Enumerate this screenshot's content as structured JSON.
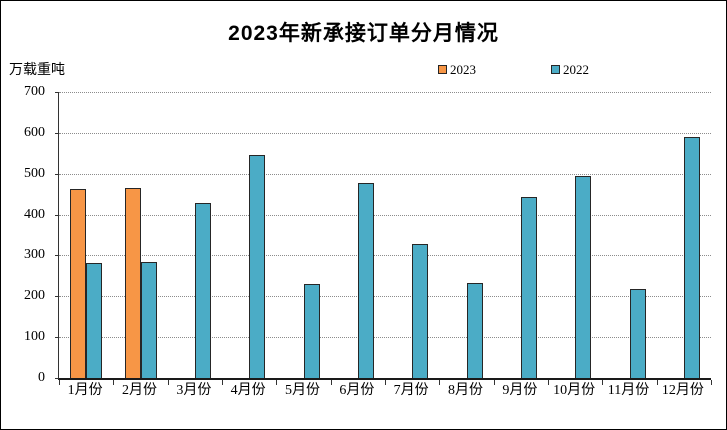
{
  "chart_data": {
    "type": "bar",
    "title": "2023年新承接订单分月情况",
    "ylabel": "万载重吨",
    "xlabel": "",
    "categories": [
      "1月份",
      "2月份",
      "3月份",
      "4月份",
      "5月份",
      "6月份",
      "7月份",
      "8月份",
      "9月份",
      "10月份",
      "11月份",
      "12月份"
    ],
    "series": [
      {
        "name": "2023",
        "color": "#F79646",
        "values": [
          462,
          466,
          null,
          null,
          null,
          null,
          null,
          null,
          null,
          null,
          null,
          null
        ]
      },
      {
        "name": "2022",
        "color": "#4BACC6",
        "values": [
          281,
          283,
          428,
          547,
          231,
          477,
          327,
          233,
          442,
          494,
          218,
          590
        ]
      }
    ],
    "ylim": [
      0,
      700
    ],
    "yticks": [
      0,
      100,
      200,
      300,
      400,
      500,
      600,
      700
    ],
    "grid": "horizontal-dotted",
    "legend_position": "top"
  },
  "style": {
    "bar_border_color": "#262626",
    "grid_color": "#8c8c8c",
    "axis_color": "#333333",
    "background": "#ffffff"
  }
}
